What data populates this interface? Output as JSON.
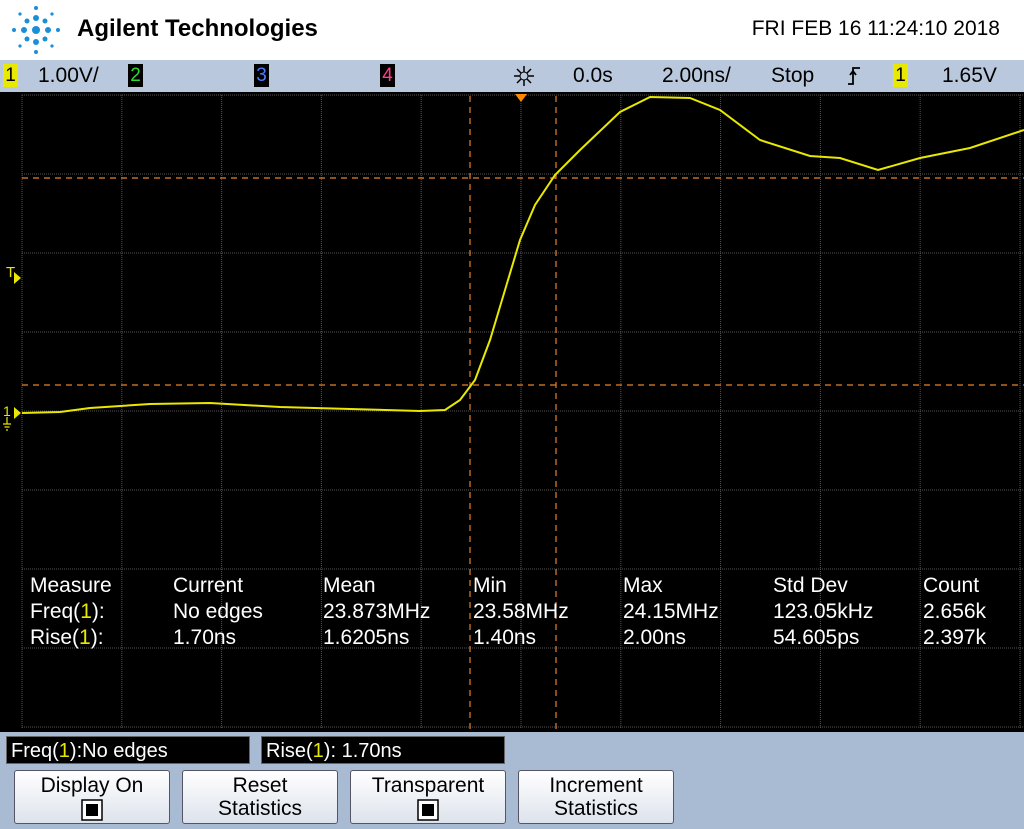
{
  "header": {
    "title": "Agilent Technologies",
    "datetime": "FRI FEB 16 11:24:10 2018"
  },
  "status_bar": {
    "ch1": "1",
    "ch1_scale": "1.00V/",
    "ch2": "2",
    "ch3": "3",
    "ch4": "4",
    "time_offset": "0.0s",
    "time_scale": "2.00ns/",
    "run_state": "Stop",
    "trigger_source": "1",
    "trigger_level": "1.65V"
  },
  "screen": {
    "trigger_marker": "T",
    "channel_marker": "1"
  },
  "measurements": {
    "columns": [
      "Measure",
      "Current",
      "Mean",
      "Min",
      "Max",
      "Std Dev",
      "Count"
    ],
    "rows": [
      {
        "label": [
          "Freq(",
          "1",
          "):"
        ],
        "cells": [
          "No edges",
          "23.873MHz",
          "23.58MHz",
          "24.15MHz",
          "123.05kHz",
          "2.656k"
        ]
      },
      {
        "label": [
          "Rise(",
          "1",
          "):"
        ],
        "cells": [
          "1.70ns",
          "1.6205ns",
          "1.40ns",
          "2.00ns",
          "54.605ps",
          "2.397k"
        ]
      }
    ]
  },
  "readouts": [
    [
      "Freq(",
      "1",
      "):No edges"
    ],
    [
      "Rise(",
      "1",
      "): 1.70ns"
    ]
  ],
  "softkeys": [
    [
      "Display On"
    ],
    [
      "Reset",
      "Statistics"
    ],
    [
      "Transparent"
    ],
    [
      "Increment",
      "Statistics"
    ]
  ]
}
